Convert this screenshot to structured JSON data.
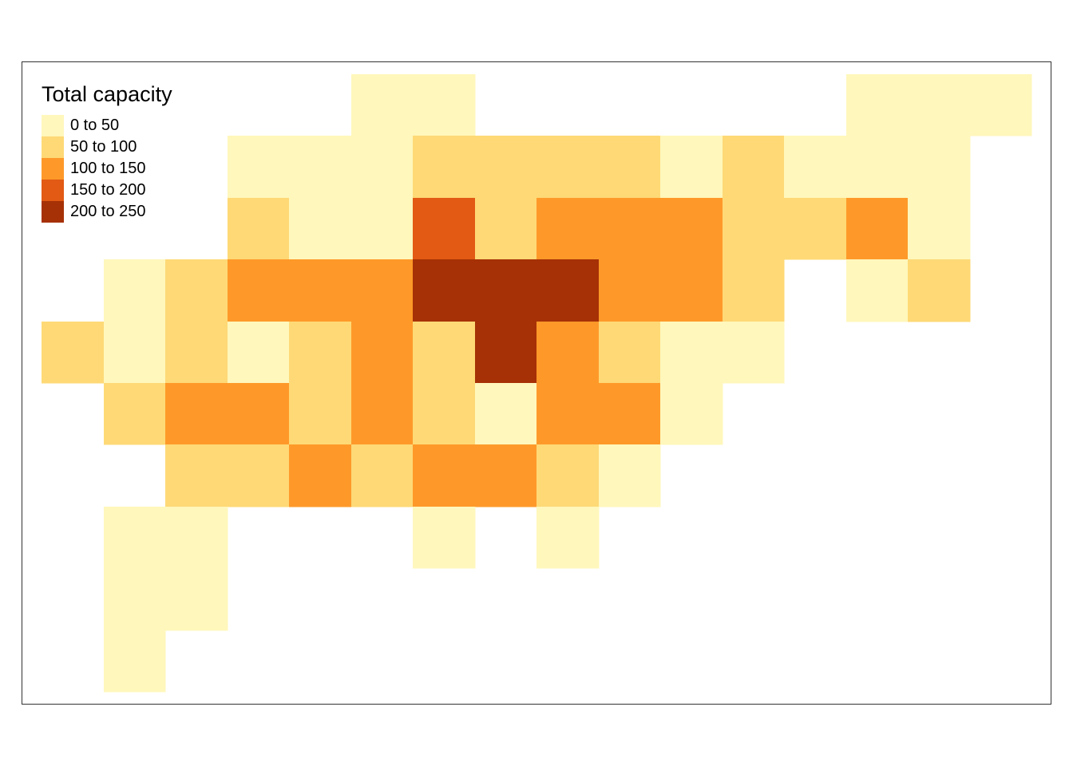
{
  "legend": {
    "title": "Total capacity",
    "classes": [
      {
        "label": "0 to 50",
        "color": "#FFF7BC"
      },
      {
        "label": "50 to 100",
        "color": "#FED976"
      },
      {
        "label": "100 to 150",
        "color": "#FE9929"
      },
      {
        "label": "150 to 200",
        "color": "#E25A14"
      },
      {
        "label": "200 to 250",
        "color": "#A63106"
      }
    ]
  },
  "grid": {
    "columns": 16,
    "rows": 10,
    "rows_classes": [
      [
        null,
        null,
        null,
        null,
        null,
        0,
        0,
        null,
        null,
        null,
        null,
        null,
        null,
        0,
        0,
        0
      ],
      [
        null,
        null,
        null,
        0,
        0,
        0,
        1,
        1,
        1,
        1,
        0,
        1,
        0,
        0,
        0,
        null
      ],
      [
        null,
        null,
        null,
        1,
        0,
        0,
        3,
        1,
        2,
        2,
        2,
        1,
        1,
        2,
        0,
        null
      ],
      [
        null,
        0,
        1,
        2,
        2,
        2,
        4,
        4,
        4,
        2,
        2,
        1,
        null,
        0,
        1,
        null
      ],
      [
        1,
        0,
        1,
        0,
        1,
        2,
        1,
        4,
        2,
        1,
        0,
        0,
        null,
        null,
        null,
        null
      ],
      [
        null,
        1,
        2,
        2,
        1,
        2,
        1,
        0,
        2,
        2,
        0,
        null,
        null,
        null,
        null,
        null
      ],
      [
        null,
        null,
        1,
        1,
        2,
        1,
        2,
        2,
        1,
        0,
        null,
        null,
        null,
        null,
        null,
        null
      ],
      [
        null,
        0,
        0,
        null,
        null,
        null,
        0,
        null,
        0,
        null,
        null,
        null,
        null,
        null,
        null,
        null
      ],
      [
        null,
        0,
        0,
        null,
        null,
        null,
        null,
        null,
        null,
        null,
        null,
        null,
        null,
        null,
        null,
        null
      ],
      [
        null,
        0,
        null,
        null,
        null,
        null,
        null,
        null,
        null,
        null,
        null,
        null,
        null,
        null,
        null,
        null
      ]
    ]
  }
}
